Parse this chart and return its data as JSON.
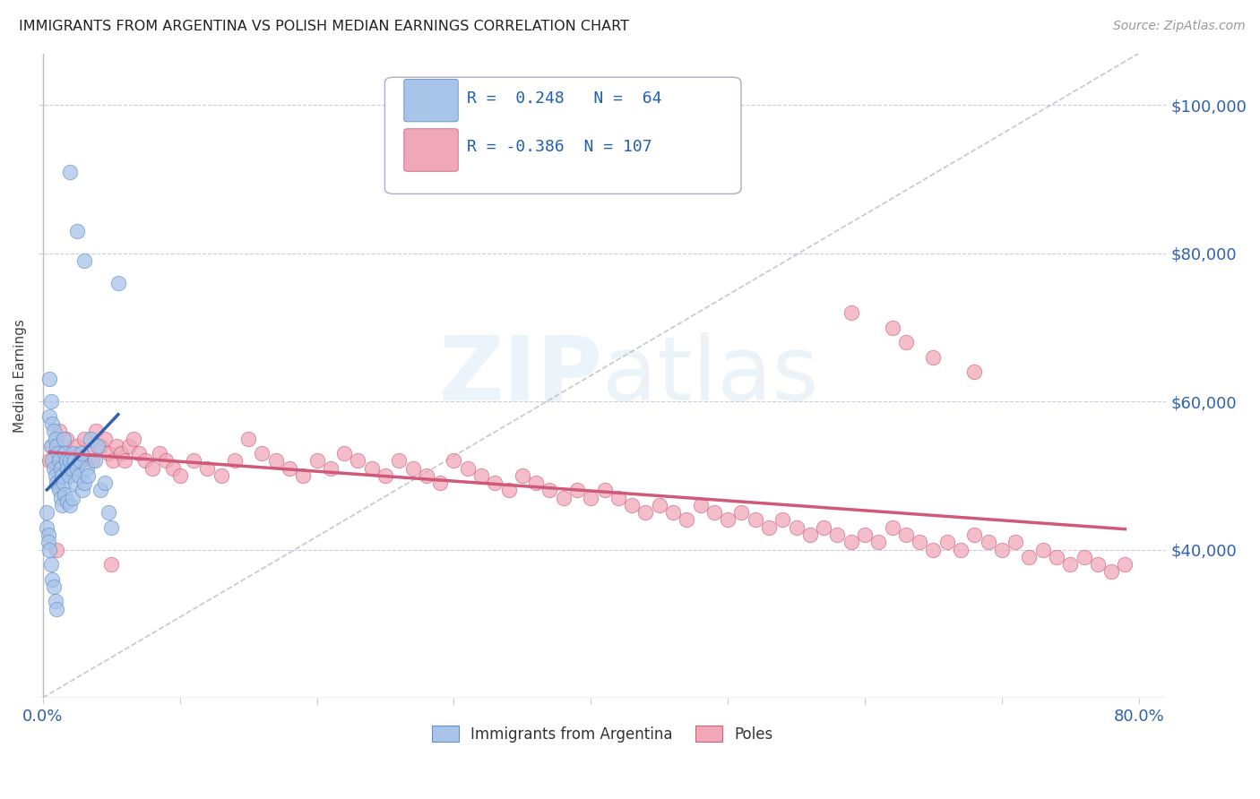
{
  "title": "IMMIGRANTS FROM ARGENTINA VS POLISH MEDIAN EARNINGS CORRELATION CHART",
  "source": "Source: ZipAtlas.com",
  "ylabel": "Median Earnings",
  "ytick_labels": [
    "$40,000",
    "$60,000",
    "$80,000",
    "$100,000"
  ],
  "ytick_values": [
    40000,
    60000,
    80000,
    100000
  ],
  "ylim": [
    20000,
    107000
  ],
  "xlim": [
    -0.003,
    0.82
  ],
  "legend_label1": "Immigrants from Argentina",
  "legend_label2": "Poles",
  "R1": 0.248,
  "N1": 64,
  "R2": -0.386,
  "N2": 107,
  "color_argentina": "#a8c4e8",
  "color_argentina_edge": "#6090cc",
  "color_poles": "#f0a8b8",
  "color_poles_edge": "#d06080",
  "color_line1": "#3060b0",
  "color_line2": "#d05878",
  "color_diag": "#b8b8c8",
  "background_color": "#ffffff",
  "watermark_zip": "ZIP",
  "watermark_atlas": "atlas",
  "argentina_x": [
    0.005,
    0.005,
    0.006,
    0.006,
    0.007,
    0.007,
    0.008,
    0.008,
    0.009,
    0.009,
    0.01,
    0.01,
    0.011,
    0.011,
    0.012,
    0.012,
    0.013,
    0.013,
    0.014,
    0.014,
    0.015,
    0.015,
    0.016,
    0.016,
    0.017,
    0.018,
    0.018,
    0.019,
    0.02,
    0.02,
    0.021,
    0.022,
    0.022,
    0.023,
    0.024,
    0.025,
    0.026,
    0.027,
    0.028,
    0.029,
    0.03,
    0.032,
    0.033,
    0.035,
    0.038,
    0.04,
    0.042,
    0.045,
    0.048,
    0.05,
    0.003,
    0.003,
    0.004,
    0.004,
    0.005,
    0.006,
    0.007,
    0.008,
    0.009,
    0.01,
    0.02,
    0.025,
    0.03,
    0.055
  ],
  "argentina_y": [
    63000,
    58000,
    60000,
    54000,
    57000,
    52000,
    56000,
    51000,
    55000,
    50000,
    54000,
    49000,
    53000,
    48500,
    52000,
    48000,
    51000,
    47000,
    50000,
    46000,
    55000,
    49000,
    53000,
    47500,
    52000,
    51000,
    46500,
    50000,
    52000,
    46000,
    51000,
    53000,
    47000,
    52000,
    49000,
    51000,
    50000,
    52000,
    53000,
    48000,
    49000,
    51000,
    50000,
    55000,
    52000,
    54000,
    48000,
    49000,
    45000,
    43000,
    45000,
    43000,
    42000,
    41000,
    40000,
    38000,
    36000,
    35000,
    33000,
    32000,
    91000,
    83000,
    79000,
    76000
  ],
  "poles_x": [
    0.005,
    0.007,
    0.01,
    0.012,
    0.015,
    0.017,
    0.019,
    0.021,
    0.023,
    0.025,
    0.028,
    0.03,
    0.033,
    0.036,
    0.039,
    0.042,
    0.045,
    0.048,
    0.051,
    0.054,
    0.057,
    0.06,
    0.063,
    0.066,
    0.07,
    0.075,
    0.08,
    0.085,
    0.09,
    0.095,
    0.1,
    0.11,
    0.12,
    0.13,
    0.14,
    0.15,
    0.16,
    0.17,
    0.18,
    0.19,
    0.2,
    0.21,
    0.22,
    0.23,
    0.24,
    0.25,
    0.26,
    0.27,
    0.28,
    0.29,
    0.3,
    0.31,
    0.32,
    0.33,
    0.34,
    0.35,
    0.36,
    0.37,
    0.38,
    0.39,
    0.4,
    0.41,
    0.42,
    0.43,
    0.44,
    0.45,
    0.46,
    0.47,
    0.48,
    0.49,
    0.5,
    0.51,
    0.52,
    0.53,
    0.54,
    0.55,
    0.56,
    0.57,
    0.58,
    0.59,
    0.6,
    0.61,
    0.62,
    0.63,
    0.64,
    0.65,
    0.66,
    0.67,
    0.68,
    0.69,
    0.7,
    0.71,
    0.72,
    0.73,
    0.74,
    0.75,
    0.76,
    0.77,
    0.78,
    0.79,
    0.01,
    0.05,
    0.59,
    0.62,
    0.63,
    0.65,
    0.68
  ],
  "poles_y": [
    52000,
    54000,
    51000,
    56000,
    53000,
    55000,
    52000,
    51000,
    53000,
    54000,
    52000,
    55000,
    53000,
    52000,
    56000,
    54000,
    55000,
    53000,
    52000,
    54000,
    53000,
    52000,
    54000,
    55000,
    53000,
    52000,
    51000,
    53000,
    52000,
    51000,
    50000,
    52000,
    51000,
    50000,
    52000,
    55000,
    53000,
    52000,
    51000,
    50000,
    52000,
    51000,
    53000,
    52000,
    51000,
    50000,
    52000,
    51000,
    50000,
    49000,
    52000,
    51000,
    50000,
    49000,
    48000,
    50000,
    49000,
    48000,
    47000,
    48000,
    47000,
    48000,
    47000,
    46000,
    45000,
    46000,
    45000,
    44000,
    46000,
    45000,
    44000,
    45000,
    44000,
    43000,
    44000,
    43000,
    42000,
    43000,
    42000,
    41000,
    42000,
    41000,
    43000,
    42000,
    41000,
    40000,
    41000,
    40000,
    42000,
    41000,
    40000,
    41000,
    39000,
    40000,
    39000,
    38000,
    39000,
    38000,
    37000,
    38000,
    40000,
    38000,
    72000,
    70000,
    68000,
    66000,
    64000
  ]
}
